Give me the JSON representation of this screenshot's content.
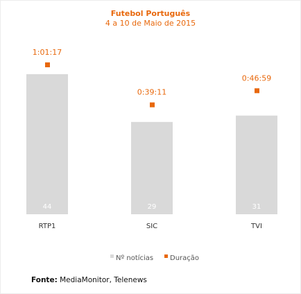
{
  "chart_data": {
    "type": "bar",
    "title": "Futebol Português",
    "subtitle": "4 a 10 de Maio de 2015",
    "categories": [
      "RTP1",
      "SIC",
      "TVI"
    ],
    "series": [
      {
        "name": "Nº notícias",
        "values": [
          44,
          29,
          31
        ],
        "labels": [
          "44",
          "29",
          "31"
        ],
        "color": "#d9d9d9"
      },
      {
        "name": "Duração",
        "values": [
          3677,
          2351,
          2819
        ],
        "labels": [
          "1:01:17",
          "0:39:11",
          "0:46:59"
        ],
        "color": "#e8680c"
      }
    ],
    "legend_position": "bottom",
    "grid": false
  },
  "source": {
    "label": "Fonte:",
    "text": "MediaMonitor, Telenews"
  }
}
